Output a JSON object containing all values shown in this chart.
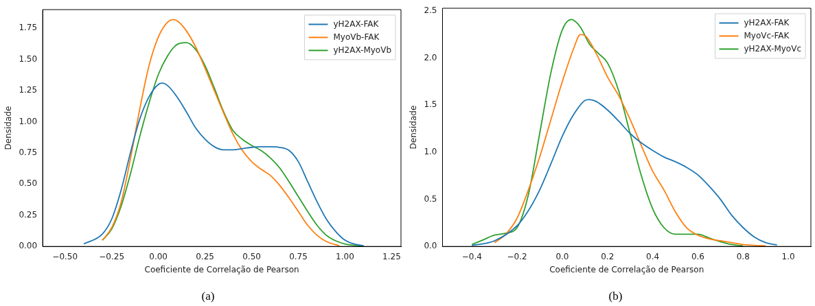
{
  "chart_data": [
    {
      "type": "line",
      "xlabel": "Coeficiente de Correlação de Pearson",
      "ylabel": "Densidade",
      "xlim": [
        -0.62,
        1.3
      ],
      "ylim": [
        0,
        1.9
      ],
      "xticks": [
        {
          "value": -0.5,
          "label": "−0.50"
        },
        {
          "value": -0.25,
          "label": "−0.25"
        },
        {
          "value": 0,
          "label": "0.00"
        },
        {
          "value": 0.25,
          "label": "0.25"
        },
        {
          "value": 0.5,
          "label": "0.50"
        },
        {
          "value": 0.75,
          "label": "0.75"
        },
        {
          "value": 1,
          "label": "1.00"
        },
        {
          "value": 1.25,
          "label": "1.25"
        }
      ],
      "yticks": [
        {
          "value": 0,
          "label": "0.00"
        },
        {
          "value": 0.25,
          "label": "0.25"
        },
        {
          "value": 0.5,
          "label": "0.50"
        },
        {
          "value": 0.75,
          "label": "0.75"
        },
        {
          "value": 1,
          "label": "1.00"
        },
        {
          "value": 1.25,
          "label": "1.25"
        },
        {
          "value": 1.5,
          "label": "1.50"
        },
        {
          "value": 1.75,
          "label": "1.75"
        }
      ],
      "grid": false,
      "legend": "top right",
      "marker": "none",
      "line_style": "solid",
      "annotations": [
        "(a)"
      ],
      "series": [
        {
          "name": "yH2AX-FAK",
          "color": "#1f77b4",
          "x": [
            -0.4,
            -0.3,
            -0.25,
            -0.2,
            -0.15,
            -0.1,
            -0.05,
            0,
            0.02,
            0.05,
            0.1,
            0.15,
            0.2,
            0.25,
            0.3,
            0.35,
            0.4,
            0.45,
            0.5,
            0.55,
            0.6,
            0.65,
            0.7,
            0.75,
            0.8,
            0.85,
            0.9,
            0.95,
            1,
            1.05,
            1.1
          ],
          "values": [
            0.02,
            0.1,
            0.22,
            0.45,
            0.75,
            1.02,
            1.2,
            1.3,
            1.31,
            1.29,
            1.2,
            1.08,
            0.95,
            0.86,
            0.8,
            0.775,
            0.775,
            0.785,
            0.795,
            0.8,
            0.8,
            0.795,
            0.77,
            0.68,
            0.52,
            0.36,
            0.22,
            0.12,
            0.05,
            0.02,
            0.005
          ]
        },
        {
          "name": "MyoVb-FAK",
          "color": "#ff7f0e",
          "x": [
            -0.3,
            -0.25,
            -0.2,
            -0.15,
            -0.1,
            -0.05,
            0,
            0.05,
            0.08,
            0.1,
            0.15,
            0.2,
            0.25,
            0.3,
            0.35,
            0.4,
            0.45,
            0.5,
            0.55,
            0.6,
            0.65,
            0.7,
            0.75,
            0.8,
            0.85,
            0.9,
            0.97
          ],
          "values": [
            0.05,
            0.15,
            0.35,
            0.7,
            1.1,
            1.45,
            1.68,
            1.8,
            1.82,
            1.81,
            1.73,
            1.6,
            1.43,
            1.25,
            1.07,
            0.9,
            0.77,
            0.68,
            0.62,
            0.57,
            0.49,
            0.39,
            0.28,
            0.17,
            0.09,
            0.04,
            0.005
          ]
        },
        {
          "name": "yH2AX-MyoVb",
          "color": "#2ca02c",
          "x": [
            -0.3,
            -0.25,
            -0.2,
            -0.15,
            -0.1,
            -0.05,
            0,
            0.05,
            0.1,
            0.15,
            0.2,
            0.25,
            0.3,
            0.35,
            0.4,
            0.45,
            0.5,
            0.55,
            0.6,
            0.65,
            0.7,
            0.75,
            0.8,
            0.85,
            0.9,
            0.95,
            1,
            1.1
          ],
          "values": [
            0.05,
            0.14,
            0.32,
            0.58,
            0.88,
            1.15,
            1.38,
            1.53,
            1.62,
            1.635,
            1.58,
            1.45,
            1.27,
            1.08,
            0.93,
            0.86,
            0.81,
            0.77,
            0.71,
            0.63,
            0.52,
            0.4,
            0.28,
            0.17,
            0.09,
            0.045,
            0.02,
            0.003
          ]
        }
      ]
    },
    {
      "type": "line",
      "xlabel": "Coeficiente de Correlação de Pearson",
      "ylabel": "Densidade",
      "xlim": [
        -0.53,
        1.1
      ],
      "ylim": [
        0,
        2.53
      ],
      "xticks": [
        {
          "value": -0.4,
          "label": "−0.4"
        },
        {
          "value": -0.2,
          "label": "−0.2"
        },
        {
          "value": 0,
          "label": "0.0"
        },
        0.2,
        0.4,
        0.6,
        0.8,
        {
          "value": 1,
          "label": "1.0"
        }
      ],
      "yticks": [
        {
          "value": 0,
          "label": "0.0"
        },
        0.5,
        {
          "value": 1,
          "label": "1.0"
        },
        1.5,
        {
          "value": 2,
          "label": "2.0"
        },
        2.5
      ],
      "grid": false,
      "legend": "top right",
      "marker": "none",
      "line_style": "solid",
      "annotations": [
        "(b)"
      ],
      "series": [
        {
          "name": "yH2AX-FAK",
          "color": "#1f77b4",
          "x": [
            -0.4,
            -0.3,
            -0.2,
            -0.15,
            -0.1,
            -0.05,
            0,
            0.05,
            0.1,
            0.12,
            0.15,
            0.2,
            0.25,
            0.3,
            0.35,
            0.4,
            0.45,
            0.5,
            0.55,
            0.6,
            0.65,
            0.7,
            0.75,
            0.8,
            0.85,
            0.9,
            0.95
          ],
          "values": [
            0.01,
            0.06,
            0.22,
            0.38,
            0.6,
            0.88,
            1.17,
            1.4,
            1.55,
            1.56,
            1.54,
            1.45,
            1.33,
            1.2,
            1.1,
            1.02,
            0.95,
            0.9,
            0.84,
            0.76,
            0.64,
            0.5,
            0.33,
            0.2,
            0.1,
            0.04,
            0.015
          ]
        },
        {
          "name": "MyoVc-FAK",
          "color": "#ff7f0e",
          "x": [
            -0.3,
            -0.25,
            -0.2,
            -0.15,
            -0.1,
            -0.05,
            0,
            0.05,
            0.08,
            0.1,
            0.15,
            0.2,
            0.25,
            0.3,
            0.35,
            0.4,
            0.45,
            0.5,
            0.55,
            0.6,
            0.65,
            0.7,
            0.75,
            0.8,
            0.9
          ],
          "values": [
            0.04,
            0.13,
            0.3,
            0.6,
            0.95,
            1.35,
            1.75,
            2.1,
            2.25,
            2.24,
            2.05,
            1.8,
            1.6,
            1.35,
            1.07,
            0.8,
            0.6,
            0.37,
            0.2,
            0.12,
            0.08,
            0.06,
            0.04,
            0.02,
            0.005
          ]
        },
        {
          "name": "yH2AX-MyoVc",
          "color": "#2ca02c",
          "x": [
            -0.4,
            -0.35,
            -0.3,
            -0.25,
            -0.2,
            -0.15,
            -0.1,
            -0.05,
            0,
            0.04,
            0.08,
            0.12,
            0.16,
            0.2,
            0.25,
            0.3,
            0.35,
            0.4,
            0.45,
            0.5,
            0.55,
            0.6,
            0.65,
            0.7,
            0.75,
            0.8
          ],
          "values": [
            0.02,
            0.07,
            0.12,
            0.14,
            0.2,
            0.55,
            1.2,
            1.85,
            2.3,
            2.41,
            2.33,
            2.15,
            2.05,
            1.95,
            1.65,
            1.2,
            0.75,
            0.4,
            0.2,
            0.13,
            0.13,
            0.13,
            0.09,
            0.05,
            0.02,
            0.005
          ]
        }
      ]
    }
  ]
}
